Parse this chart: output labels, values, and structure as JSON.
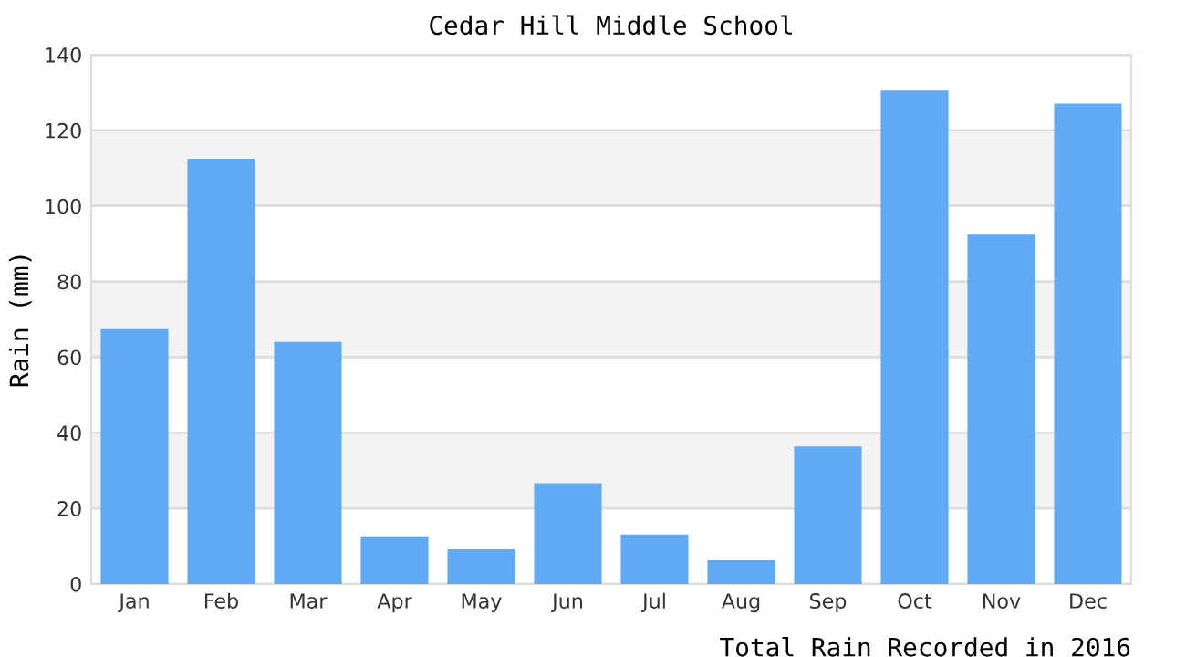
{
  "chart_data": {
    "type": "bar",
    "title": "Cedar Hill Middle School",
    "xlabel": "Total Rain Recorded in 2016",
    "ylabel": "Rain (mm)",
    "categories": [
      "Jan",
      "Feb",
      "Mar",
      "Apr",
      "May",
      "Jun",
      "Jul",
      "Aug",
      "Sep",
      "Oct",
      "Nov",
      "Dec"
    ],
    "values": [
      67.4,
      112.5,
      64.0,
      12.6,
      9.2,
      26.7,
      13.1,
      6.3,
      36.4,
      130.5,
      92.6,
      127.1
    ],
    "color": "#60a9f5",
    "ylim": [
      0,
      140
    ],
    "yticks": [
      0,
      20,
      40,
      60,
      80,
      100,
      120,
      140
    ],
    "grid": "y",
    "legend": false
  }
}
